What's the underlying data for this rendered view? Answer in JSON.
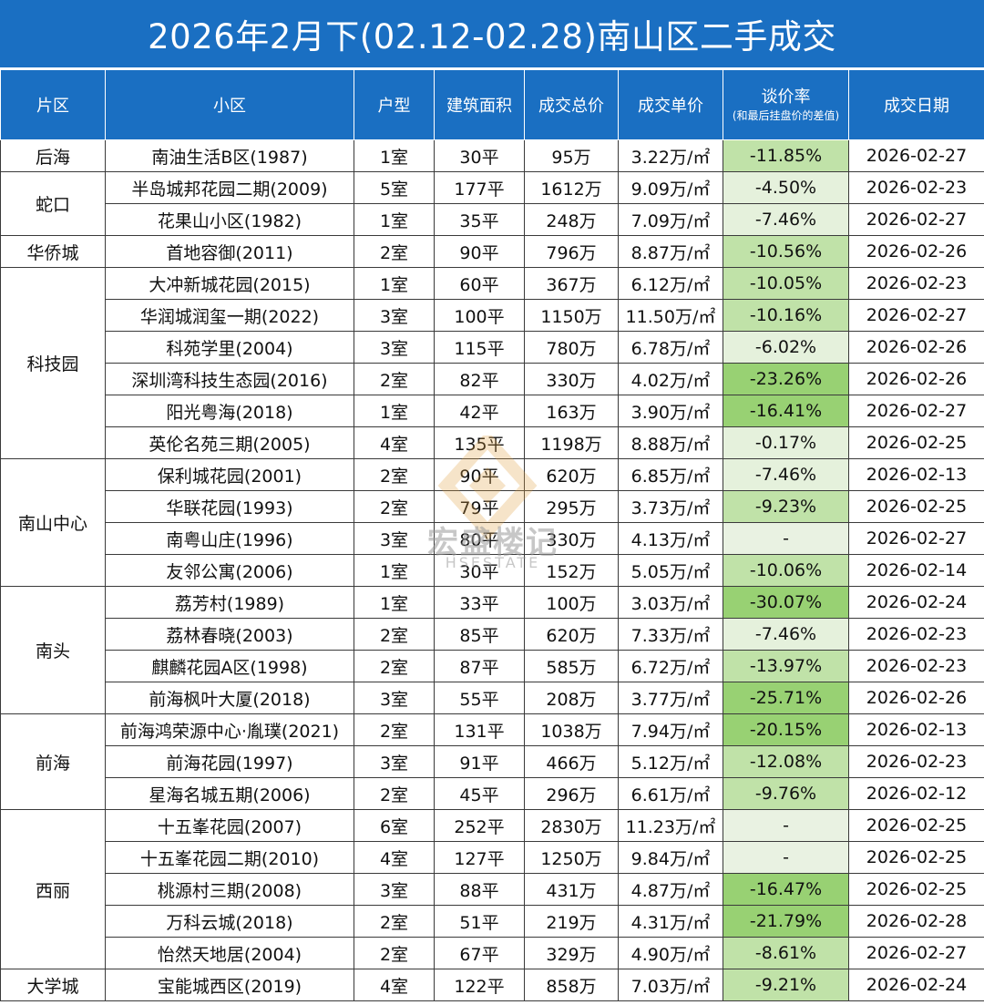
{
  "title": "2026年2月下(02.12-02.28)南山区二手成交",
  "headers": {
    "area": "片区",
    "community": "小区",
    "layout": "户型",
    "size": "建筑面积",
    "total": "成交总价",
    "unit": "成交单价",
    "rate": "谈价率",
    "rate_note": "(和最后挂盘价的差值)",
    "date": "成交日期"
  },
  "watermark": {
    "brand": "宏盛楼记",
    "sub": "HSESTATE"
  },
  "colors": {
    "header_bg": "#1a6fc2",
    "rate_light": "#e5f1dc",
    "rate_mid": "#c0e2a8",
    "rate_strong": "#98d173",
    "rate_none": "#e9f2e2"
  },
  "groups": [
    {
      "area": "后海",
      "rows": [
        {
          "community": "南油生活B区(1987)",
          "layout": "1室",
          "size": "30平",
          "total": "95万",
          "unit": "3.22万/㎡",
          "rate": "-11.85%",
          "rate_value": -11.85,
          "date": "2026-02-27"
        }
      ]
    },
    {
      "area": "蛇口",
      "rows": [
        {
          "community": "半岛城邦花园二期(2009)",
          "layout": "5室",
          "size": "177平",
          "total": "1612万",
          "unit": "9.09万/㎡",
          "rate": "-4.50%",
          "rate_value": -4.5,
          "date": "2026-02-23"
        },
        {
          "community": "花果山小区(1982)",
          "layout": "1室",
          "size": "35平",
          "total": "248万",
          "unit": "7.09万/㎡",
          "rate": "-7.46%",
          "rate_value": -7.46,
          "date": "2026-02-27"
        }
      ]
    },
    {
      "area": "华侨城",
      "rows": [
        {
          "community": "首地容御(2011)",
          "layout": "2室",
          "size": "90平",
          "total": "796万",
          "unit": "8.87万/㎡",
          "rate": "-10.56%",
          "rate_value": -10.56,
          "date": "2026-02-26"
        }
      ]
    },
    {
      "area": "科技园",
      "rows": [
        {
          "community": "大冲新城花园(2015)",
          "layout": "1室",
          "size": "60平",
          "total": "367万",
          "unit": "6.12万/㎡",
          "rate": "-10.05%",
          "rate_value": -10.05,
          "date": "2026-02-23"
        },
        {
          "community": "华润城润玺一期(2022)",
          "layout": "3室",
          "size": "100平",
          "total": "1150万",
          "unit": "11.50万/㎡",
          "rate": "-10.16%",
          "rate_value": -10.16,
          "date": "2026-02-27"
        },
        {
          "community": "科苑学里(2004)",
          "layout": "3室",
          "size": "115平",
          "total": "780万",
          "unit": "6.78万/㎡",
          "rate": "-6.02%",
          "rate_value": -6.02,
          "date": "2026-02-26"
        },
        {
          "community": "深圳湾科技生态园(2016)",
          "layout": "2室",
          "size": "82平",
          "total": "330万",
          "unit": "4.02万/㎡",
          "rate": "-23.26%",
          "rate_value": -23.26,
          "date": "2026-02-26"
        },
        {
          "community": "阳光粤海(2018)",
          "layout": "1室",
          "size": "42平",
          "total": "163万",
          "unit": "3.90万/㎡",
          "rate": "-16.41%",
          "rate_value": -16.41,
          "date": "2026-02-27"
        },
        {
          "community": "英伦名苑三期(2005)",
          "layout": "4室",
          "size": "135平",
          "total": "1198万",
          "unit": "8.88万/㎡",
          "rate": "-0.17%",
          "rate_value": -0.17,
          "date": "2026-02-25"
        }
      ]
    },
    {
      "area": "南山中心",
      "rows": [
        {
          "community": "保利城花园(2001)",
          "layout": "2室",
          "size": "90平",
          "total": "620万",
          "unit": "6.85万/㎡",
          "rate": "-7.46%",
          "rate_value": -7.46,
          "date": "2026-02-13"
        },
        {
          "community": "华联花园(1993)",
          "layout": "2室",
          "size": "79平",
          "total": "295万",
          "unit": "3.73万/㎡",
          "rate": "-9.23%",
          "rate_value": -9.23,
          "date": "2026-02-25"
        },
        {
          "community": "南粤山庄(1996)",
          "layout": "3室",
          "size": "80平",
          "total": "330万",
          "unit": "4.13万/㎡",
          "rate": "-",
          "rate_value": null,
          "date": "2026-02-27"
        },
        {
          "community": "友邻公寓(2006)",
          "layout": "1室",
          "size": "30平",
          "total": "152万",
          "unit": "5.05万/㎡",
          "rate": "-10.06%",
          "rate_value": -10.06,
          "date": "2026-02-14"
        }
      ]
    },
    {
      "area": "南头",
      "rows": [
        {
          "community": "荔芳村(1989)",
          "layout": "1室",
          "size": "33平",
          "total": "100万",
          "unit": "3.03万/㎡",
          "rate": "-30.07%",
          "rate_value": -30.07,
          "date": "2026-02-24"
        },
        {
          "community": "荔林春晓(2003)",
          "layout": "2室",
          "size": "85平",
          "total": "620万",
          "unit": "7.33万/㎡",
          "rate": "-7.46%",
          "rate_value": -7.46,
          "date": "2026-02-23"
        },
        {
          "community": "麒麟花园A区(1998)",
          "layout": "2室",
          "size": "87平",
          "total": "585万",
          "unit": "6.72万/㎡",
          "rate": "-13.97%",
          "rate_value": -13.97,
          "date": "2026-02-23"
        },
        {
          "community": "前海枫叶大厦(2018)",
          "layout": "3室",
          "size": "55平",
          "total": "208万",
          "unit": "3.77万/㎡",
          "rate": "-25.71%",
          "rate_value": -25.71,
          "date": "2026-02-26"
        }
      ]
    },
    {
      "area": "前海",
      "rows": [
        {
          "community": "前海鸿荣源中心·胤璞(2021)",
          "layout": "2室",
          "size": "131平",
          "total": "1038万",
          "unit": "7.94万/㎡",
          "rate": "-20.15%",
          "rate_value": -20.15,
          "date": "2026-02-13"
        },
        {
          "community": "前海花园(1997)",
          "layout": "3室",
          "size": "91平",
          "total": "466万",
          "unit": "5.12万/㎡",
          "rate": "-12.08%",
          "rate_value": -12.08,
          "date": "2026-02-23"
        },
        {
          "community": "星海名城五期(2006)",
          "layout": "2室",
          "size": "45平",
          "total": "296万",
          "unit": "6.61万/㎡",
          "rate": "-9.76%",
          "rate_value": -9.76,
          "date": "2026-02-12"
        }
      ]
    },
    {
      "area": "西丽",
      "rows": [
        {
          "community": "十五峯花园(2007)",
          "layout": "6室",
          "size": "252平",
          "total": "2830万",
          "unit": "11.23万/㎡",
          "rate": "-",
          "rate_value": null,
          "date": "2026-02-25"
        },
        {
          "community": "十五峯花园二期(2010)",
          "layout": "4室",
          "size": "127平",
          "total": "1250万",
          "unit": "9.84万/㎡",
          "rate": "-",
          "rate_value": null,
          "date": "2026-02-25"
        },
        {
          "community": "桃源村三期(2008)",
          "layout": "3室",
          "size": "88平",
          "total": "431万",
          "unit": "4.87万/㎡",
          "rate": "-16.47%",
          "rate_value": -16.47,
          "date": "2026-02-25"
        },
        {
          "community": "万科云城(2018)",
          "layout": "2室",
          "size": "51平",
          "total": "219万",
          "unit": "4.31万/㎡",
          "rate": "-21.79%",
          "rate_value": -21.79,
          "date": "2026-02-28"
        },
        {
          "community": "怡然天地居(2004)",
          "layout": "2室",
          "size": "67平",
          "total": "329万",
          "unit": "4.90万/㎡",
          "rate": "-8.61%",
          "rate_value": -8.61,
          "date": "2026-02-27"
        }
      ]
    },
    {
      "area": "大学城",
      "rows": [
        {
          "community": "宝能城西区(2019)",
          "layout": "4室",
          "size": "122平",
          "total": "858万",
          "unit": "7.03万/㎡",
          "rate": "-9.21%",
          "rate_value": -9.21,
          "date": "2026-02-24"
        }
      ]
    }
  ]
}
